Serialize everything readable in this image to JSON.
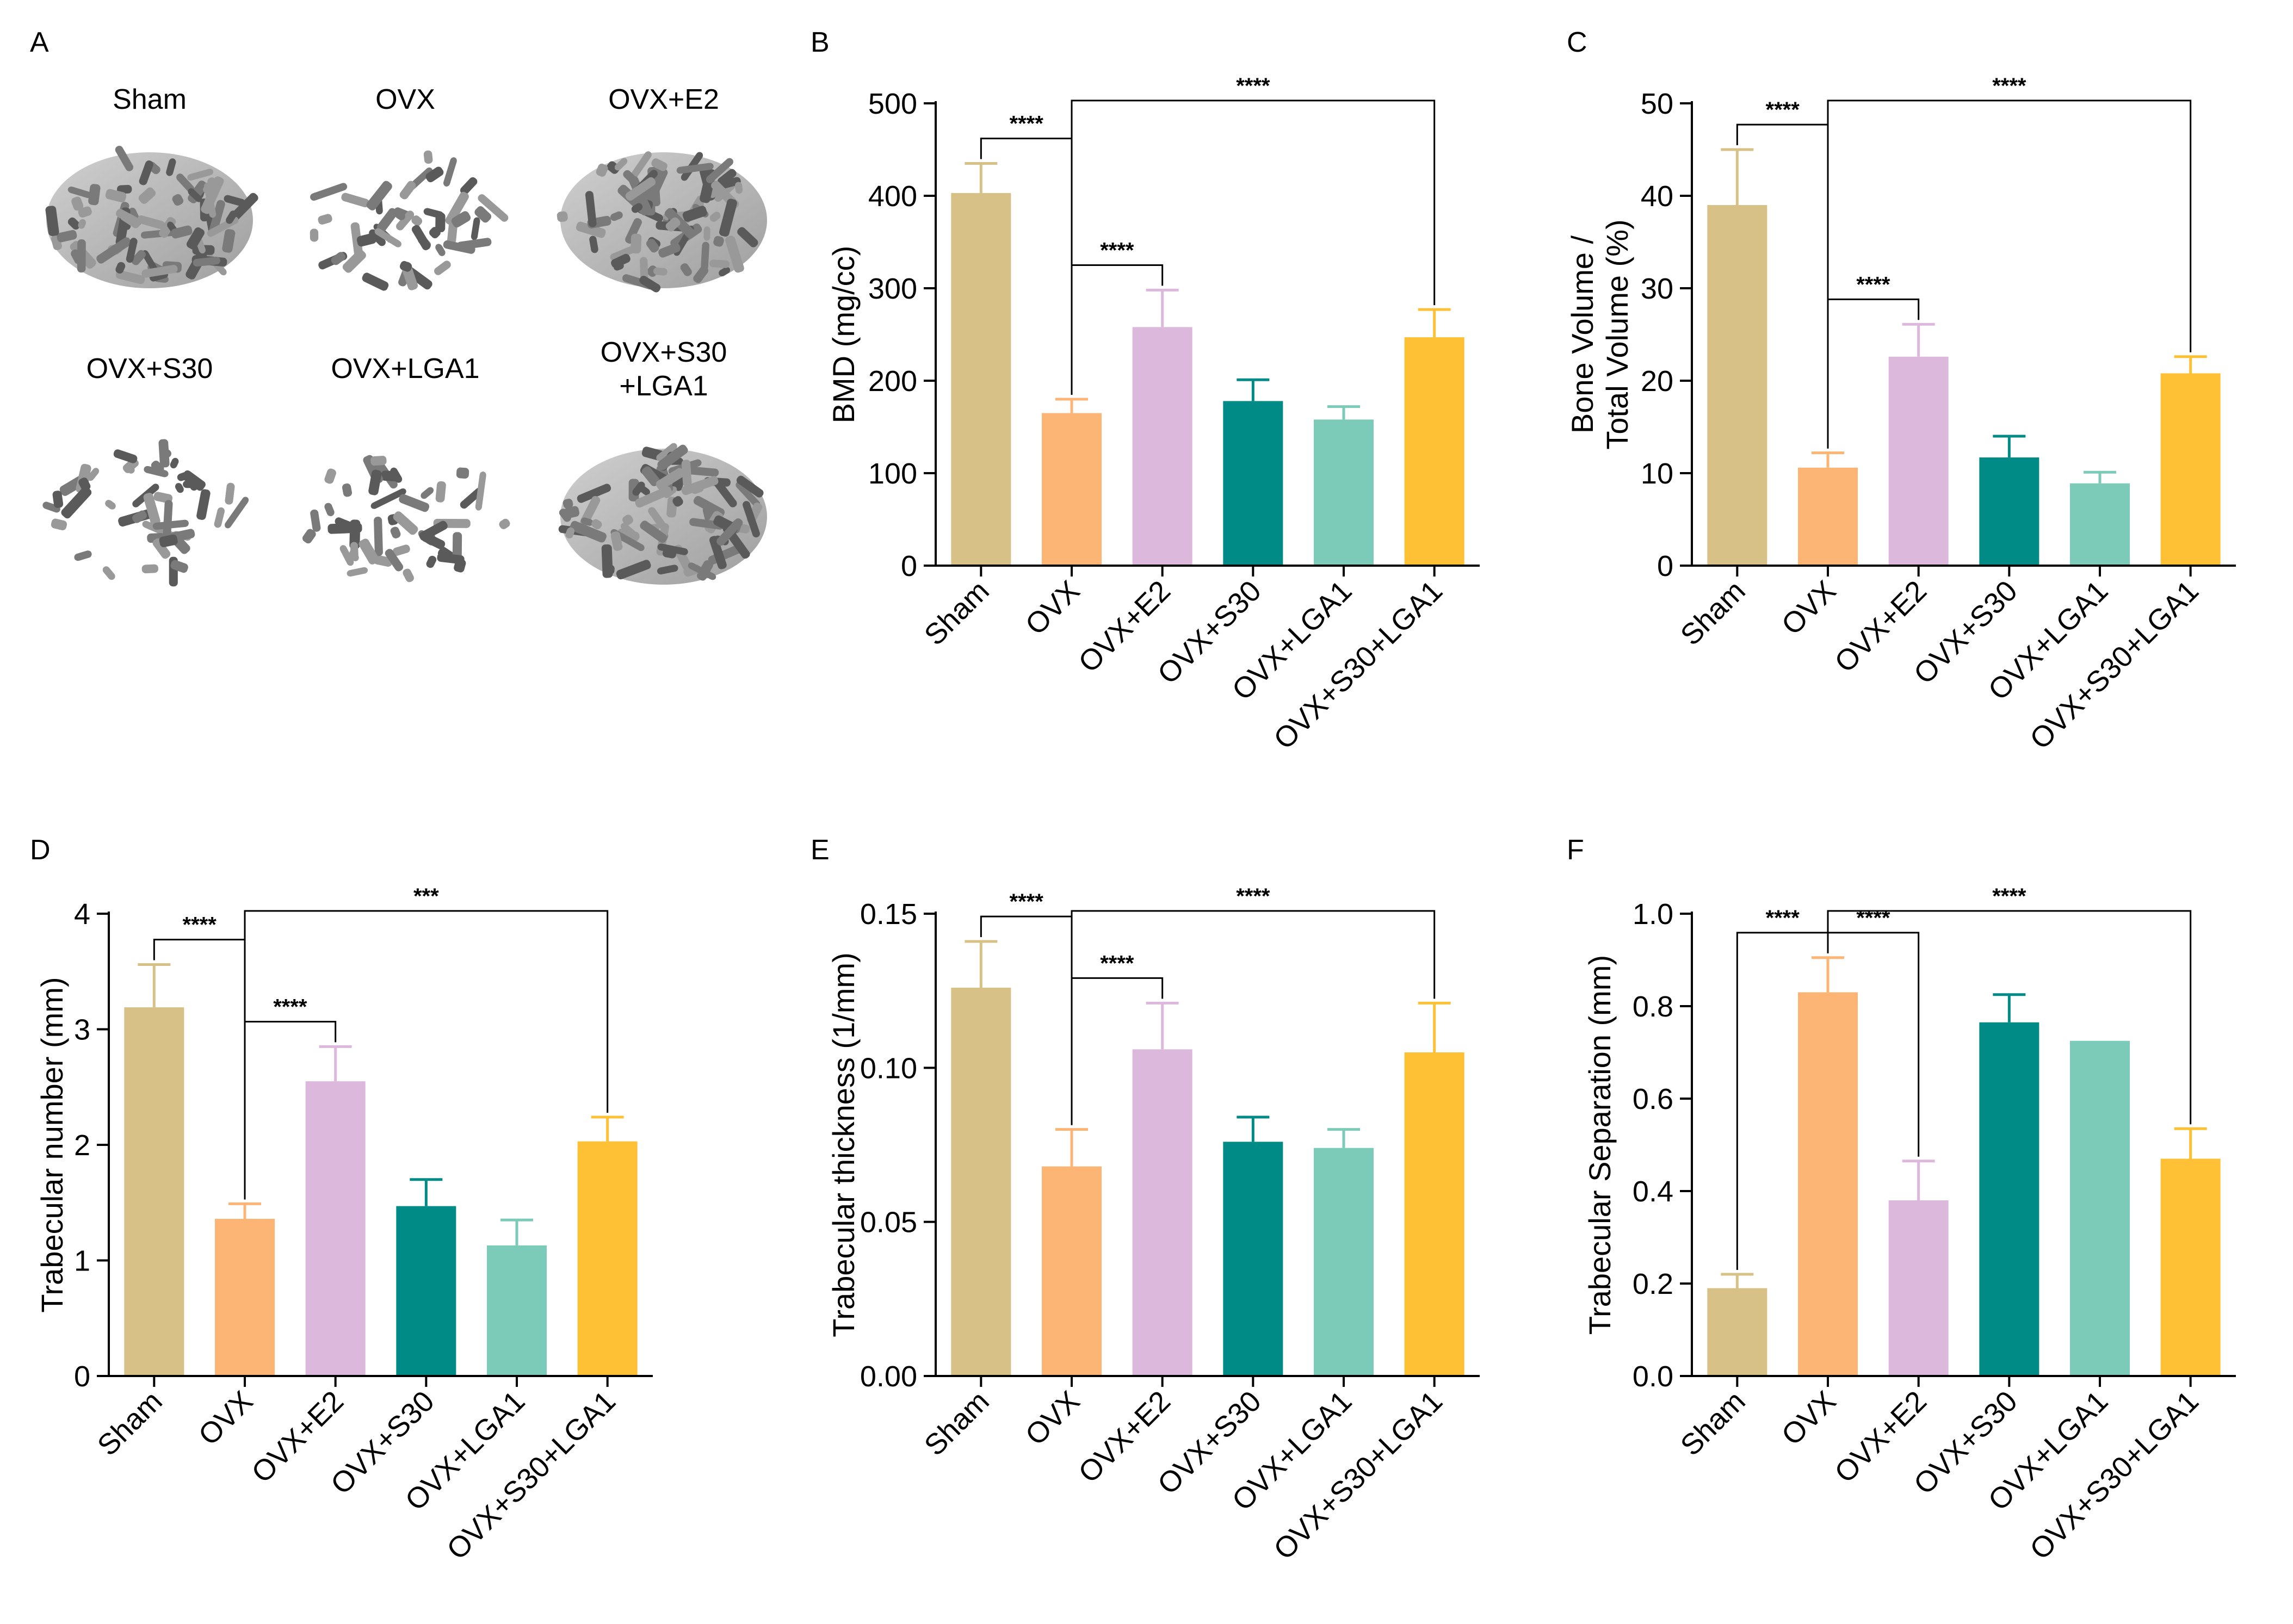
{
  "colors": {
    "Sham": "#d8c187",
    "OVX": "#fdb576",
    "OVX+E2": "#ddb8dd",
    "OVX+S30": "#008b87",
    "OVX+LGA1": "#7ccab8",
    "OVX+S30+LGA1": "#fec035"
  },
  "panel_a": {
    "label": "A",
    "icon": "micro-ct-scan-icon",
    "images": [
      {
        "label": "Sham"
      },
      {
        "label": "OVX"
      },
      {
        "label": "OVX+E2"
      },
      {
        "label": "OVX+S30"
      },
      {
        "label": "OVX+LGA1"
      },
      {
        "label": "OVX+S30\n+LGA1"
      }
    ]
  },
  "chart_data": [
    {
      "panel": "B",
      "type": "bar",
      "categories": [
        "Sham",
        "OVX",
        "OVX+E2",
        "OVX+S30",
        "OVX+LGA1",
        "OVX+S30+LGA1"
      ],
      "values": [
        403,
        165,
        258,
        178,
        158,
        247
      ],
      "errors": [
        32,
        15,
        40,
        23,
        14,
        30
      ],
      "ylabel": "BMD (mg/cc)",
      "ylim": [
        0,
        500
      ],
      "yticks": [
        0,
        100,
        200,
        300,
        400,
        500
      ],
      "ytick_labels": [
        "0",
        "100",
        "200",
        "300",
        "400",
        "500"
      ],
      "brackets": [
        {
          "from": 0,
          "to": 1,
          "text": "****"
        },
        {
          "from": 1,
          "to": 2,
          "text": "****"
        },
        {
          "from": 1,
          "to": 5,
          "text": "****"
        }
      ]
    },
    {
      "panel": "C",
      "type": "bar",
      "categories": [
        "Sham",
        "OVX",
        "OVX+E2",
        "OVX+S30",
        "OVX+LGA1",
        "OVX+S30+LGA1"
      ],
      "values": [
        39,
        10.6,
        22.6,
        11.7,
        8.9,
        20.8
      ],
      "errors": [
        6,
        1.6,
        3.5,
        2.3,
        1.2,
        1.8
      ],
      "ylabel": "Bone Volume /\nTotal Volume (%)",
      "ylim": [
        0,
        50
      ],
      "yticks": [
        0,
        10,
        20,
        30,
        40,
        50
      ],
      "ytick_labels": [
        "0",
        "10",
        "20",
        "30",
        "40",
        "50"
      ],
      "brackets": [
        {
          "from": 0,
          "to": 1,
          "text": "****"
        },
        {
          "from": 1,
          "to": 2,
          "text": "****"
        },
        {
          "from": 1,
          "to": 5,
          "text": "****"
        }
      ]
    },
    {
      "panel": "D",
      "type": "bar",
      "categories": [
        "Sham",
        "OVX",
        "OVX+E2",
        "OVX+S30",
        "OVX+LGA1",
        "OVX+S30+LGA1"
      ],
      "values": [
        3.19,
        1.36,
        2.55,
        1.47,
        1.13,
        2.03
      ],
      "errors": [
        0.37,
        0.13,
        0.3,
        0.23,
        0.22,
        0.21
      ],
      "ylabel": "Trabecular number (mm)",
      "ylim": [
        0,
        4
      ],
      "yticks": [
        0,
        1,
        2,
        3,
        4
      ],
      "ytick_labels": [
        "0",
        "1",
        "2",
        "3",
        "4"
      ],
      "brackets": [
        {
          "from": 0,
          "to": 1,
          "text": "****"
        },
        {
          "from": 1,
          "to": 2,
          "text": "****"
        },
        {
          "from": 1,
          "to": 5,
          "text": "***"
        }
      ]
    },
    {
      "panel": "E",
      "type": "bar",
      "categories": [
        "Sham",
        "OVX",
        "OVX+E2",
        "OVX+S30",
        "OVX+LGA1",
        "OVX+S30+LGA1"
      ],
      "values": [
        0.126,
        0.068,
        0.106,
        0.076,
        0.074,
        0.105
      ],
      "errors": [
        0.015,
        0.012,
        0.015,
        0.008,
        0.006,
        0.016
      ],
      "ylabel": "Trabecular thickness (1/mm)",
      "ylim": [
        0,
        0.15
      ],
      "yticks": [
        0,
        0.05,
        0.1,
        0.15
      ],
      "ytick_labels": [
        "0.00",
        "0.05",
        "0.10",
        "0.15"
      ],
      "brackets": [
        {
          "from": 0,
          "to": 1,
          "text": "****"
        },
        {
          "from": 1,
          "to": 2,
          "text": "****"
        },
        {
          "from": 1,
          "to": 5,
          "text": "****"
        }
      ]
    },
    {
      "panel": "F",
      "type": "bar",
      "categories": [
        "Sham",
        "OVX",
        "OVX+E2",
        "OVX+S30",
        "OVX+LGA1",
        "OVX+S30+LGA1"
      ],
      "values": [
        0.19,
        0.83,
        0.38,
        0.765,
        0.725,
        0.47
      ],
      "errors": [
        0.03,
        0.075,
        0.085,
        0.06,
        0,
        0.065
      ],
      "ylabel": "Trabecular Separation (mm)",
      "ylim": [
        0,
        1.0
      ],
      "yticks": [
        0,
        0.2,
        0.4,
        0.6,
        0.8,
        1.0
      ],
      "ytick_labels": [
        "0.0",
        "0.2",
        "0.4",
        "0.6",
        "0.8",
        "1.0"
      ],
      "brackets": [
        {
          "from": 0,
          "to": 1,
          "text": "****"
        },
        {
          "from": 1,
          "to": 2,
          "text": "****"
        },
        {
          "from": 1,
          "to": 5,
          "text": "****"
        }
      ]
    }
  ]
}
